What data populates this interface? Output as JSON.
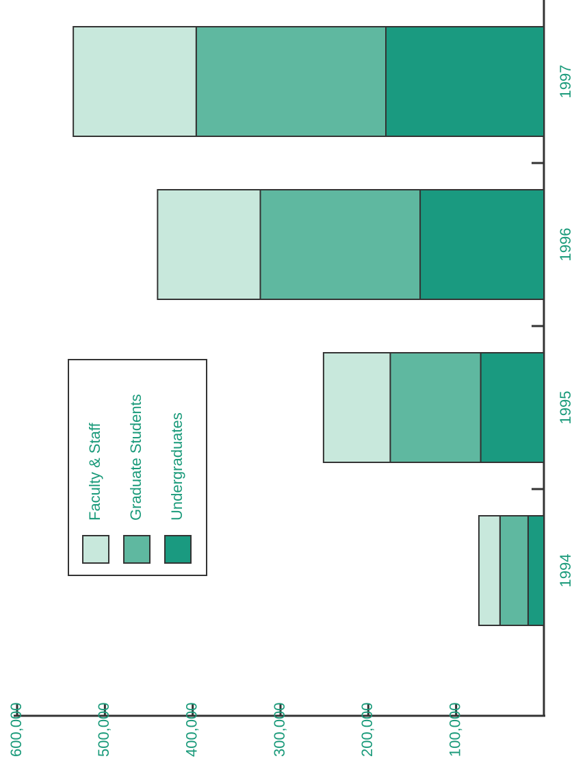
{
  "chart_data": {
    "type": "bar",
    "stacked": true,
    "orientation": "rotated",
    "categories": [
      "1994",
      "1995",
      "1996",
      "1997"
    ],
    "series": [
      {
        "name": "Undergraduates",
        "color": "#1a9a80",
        "values": [
          18000,
          72000,
          141000,
          180000
        ]
      },
      {
        "name": "Graduate Students",
        "color": "#5fb8a0",
        "values": [
          32000,
          103000,
          182000,
          216000
        ]
      },
      {
        "name": "Faculty & Staff",
        "color": "#c8e8dc",
        "values": [
          24000,
          76000,
          117000,
          140000
        ]
      }
    ],
    "ylim": [
      0,
      600000
    ],
    "yticks": [
      {
        "value": 100000,
        "label": "100,000"
      },
      {
        "value": 200000,
        "label": "200,000"
      },
      {
        "value": 300000,
        "label": "300,000"
      },
      {
        "value": 400000,
        "label": "400,000"
      },
      {
        "value": 500000,
        "label": "500,000"
      },
      {
        "value": 600000,
        "label": "600,000"
      }
    ]
  }
}
